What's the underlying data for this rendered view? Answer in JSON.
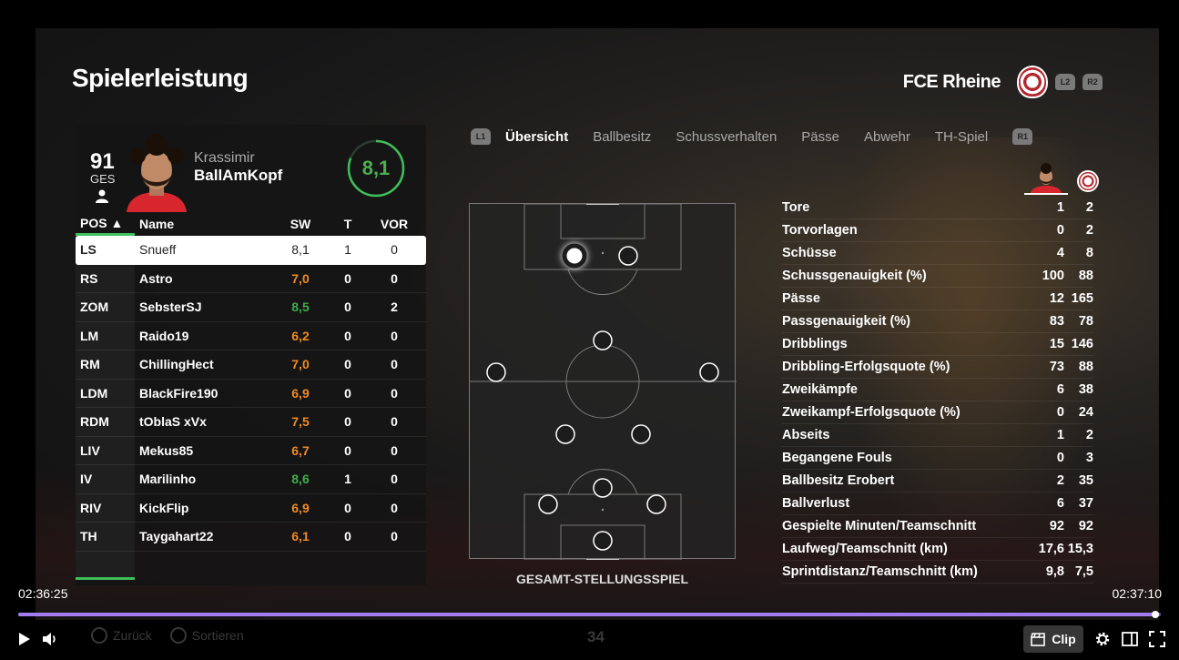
{
  "page": {
    "title": "Spielerleistung",
    "team_name": "FCE Rheine",
    "shoulder_left": "L2",
    "shoulder_right": "R2"
  },
  "player": {
    "ovr": "91",
    "ovr_label": "GES",
    "first_name": "Krassimir",
    "last_name": "BallAmKopf",
    "rating": "8,1",
    "rating_fraction": 0.81
  },
  "table": {
    "headers": {
      "pos": "POS ▲",
      "name": "Name",
      "sw": "SW",
      "t": "T",
      "vor": "VOR"
    },
    "rows": [
      {
        "pos": "LS",
        "name": "Snueff",
        "sw": "8,1",
        "sw_color": "#222222",
        "t": "1",
        "vor": "0"
      },
      {
        "pos": "RS",
        "name": "Astro",
        "sw": "7,0",
        "sw_color": "#f08a24",
        "t": "0",
        "vor": "0"
      },
      {
        "pos": "ZOM",
        "name": "SebsterSJ",
        "sw": "8,5",
        "sw_color": "#3fae4a",
        "t": "0",
        "vor": "2"
      },
      {
        "pos": "LM",
        "name": "Raido19",
        "sw": "6,2",
        "sw_color": "#f08a24",
        "t": "0",
        "vor": "0"
      },
      {
        "pos": "RM",
        "name": "ChillingHect",
        "sw": "7,0",
        "sw_color": "#f08a24",
        "t": "0",
        "vor": "0"
      },
      {
        "pos": "LDM",
        "name": "BlackFire190",
        "sw": "6,9",
        "sw_color": "#f08a24",
        "t": "0",
        "vor": "0"
      },
      {
        "pos": "RDM",
        "name": "tOblaS xVx",
        "sw": "7,5",
        "sw_color": "#f08a24",
        "t": "0",
        "vor": "0"
      },
      {
        "pos": "LIV",
        "name": "Mekus85",
        "sw": "6,7",
        "sw_color": "#f08a24",
        "t": "0",
        "vor": "0"
      },
      {
        "pos": "IV",
        "name": "Marilinho",
        "sw": "8,6",
        "sw_color": "#3fae4a",
        "t": "1",
        "vor": "0"
      },
      {
        "pos": "RIV",
        "name": "KickFlip",
        "sw": "6,9",
        "sw_color": "#f08a24",
        "t": "0",
        "vor": "0"
      },
      {
        "pos": "TH",
        "name": "Taygahart22",
        "sw": "6,1",
        "sw_color": "#f08a24",
        "t": "0",
        "vor": "0"
      }
    ]
  },
  "tabs": {
    "left_button": "L1",
    "right_button": "R1",
    "items": [
      {
        "label": "Übersicht",
        "active": true
      },
      {
        "label": "Ballbesitz",
        "active": false
      },
      {
        "label": "Schussverhalten",
        "active": false
      },
      {
        "label": "Pässe",
        "active": false
      },
      {
        "label": "Abwehr",
        "active": false
      },
      {
        "label": "TH-Spiel",
        "active": false
      }
    ]
  },
  "pitch": {
    "label": "GESAMT-STELLUNGSSPIEL"
  },
  "stats": [
    {
      "label": "Tore",
      "player": "1",
      "team": "2"
    },
    {
      "label": "Torvorlagen",
      "player": "0",
      "team": "2"
    },
    {
      "label": "Schüsse",
      "player": "4",
      "team": "8"
    },
    {
      "label": "Schussgenauigkeit (%)",
      "player": "100",
      "team": "88"
    },
    {
      "label": "Pässe",
      "player": "12",
      "team": "165"
    },
    {
      "label": "Passgenauigkeit (%)",
      "player": "83",
      "team": "78"
    },
    {
      "label": "Dribblings",
      "player": "15",
      "team": "146"
    },
    {
      "label": "Dribbling-Erfolgsquote (%)",
      "player": "73",
      "team": "88"
    },
    {
      "label": "Zweikämpfe",
      "player": "6",
      "team": "38"
    },
    {
      "label": "Zweikampf-Erfolgsquote (%)",
      "player": "0",
      "team": "24"
    },
    {
      "label": "Abseits",
      "player": "1",
      "team": "2"
    },
    {
      "label": "Begangene Fouls",
      "player": "0",
      "team": "3"
    },
    {
      "label": "Ballbesitz Erobert",
      "player": "2",
      "team": "35"
    },
    {
      "label": "Ballverlust",
      "player": "6",
      "team": "37"
    },
    {
      "label": "Gespielte Minuten/Teamschnitt",
      "player": "92",
      "team": "92"
    },
    {
      "label": "Laufweg/Teamschnitt (km)",
      "player": "17,6",
      "team": "15,3"
    },
    {
      "label": "Sprintdistanz/Teamschnitt (km)",
      "player": "9,8",
      "team": "7,5"
    }
  ],
  "game_footer": {
    "back": "Zurück",
    "sort": "Sortieren",
    "page": "34"
  },
  "player_controls": {
    "time_current": "02:36:25",
    "time_total": "02:37:10",
    "progress_fraction": 0.995,
    "clip_label": "Clip"
  },
  "colors": {
    "accent_green": "#3fbf5a",
    "rating_orange": "#f08a24",
    "progress_purple": "#a47cf2"
  }
}
